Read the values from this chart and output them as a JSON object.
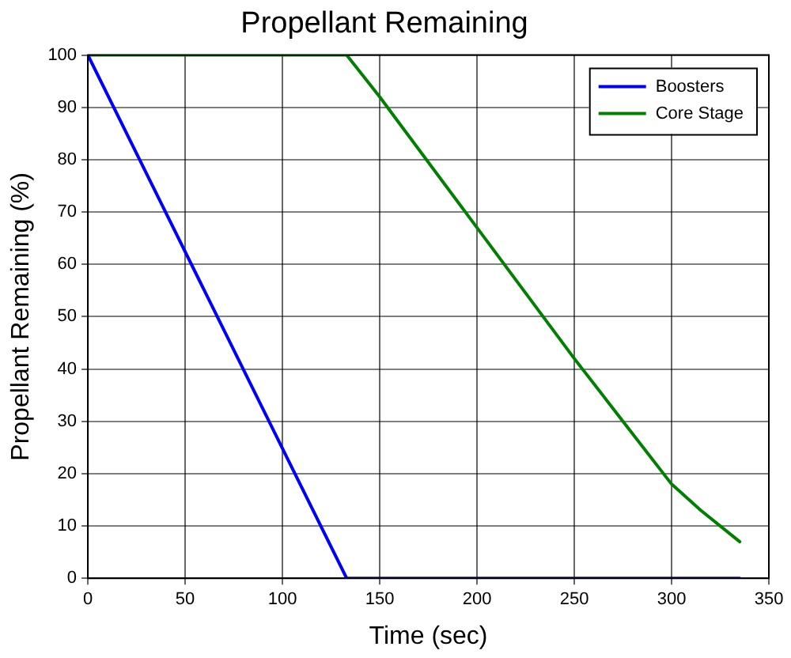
{
  "chart_data": {
    "type": "line",
    "title": "Propellant Remaining",
    "xlabel": "Time (sec)",
    "ylabel": "Propellant Remaining (%)",
    "xlim": [
      0,
      350
    ],
    "xticks": [
      0,
      50,
      100,
      150,
      200,
      250,
      300,
      350
    ],
    "ylim": [
      0,
      100
    ],
    "yticks": [
      0,
      10,
      20,
      30,
      40,
      50,
      60,
      70,
      80,
      90,
      100
    ],
    "grid": true,
    "legend": "top right",
    "marker": "none",
    "line_style": "solid",
    "series": [
      {
        "name": "Boosters",
        "color": "#0000ff",
        "x": [
          0,
          133,
          335
        ],
        "values": [
          100,
          0,
          0
        ]
      },
      {
        "name": "Core Stage",
        "color": "#008000",
        "x": [
          0,
          133,
          150,
          200,
          250,
          275,
          300,
          315,
          335
        ],
        "values": [
          100,
          100,
          92,
          67,
          42,
          30,
          18,
          13,
          7
        ]
      }
    ]
  }
}
